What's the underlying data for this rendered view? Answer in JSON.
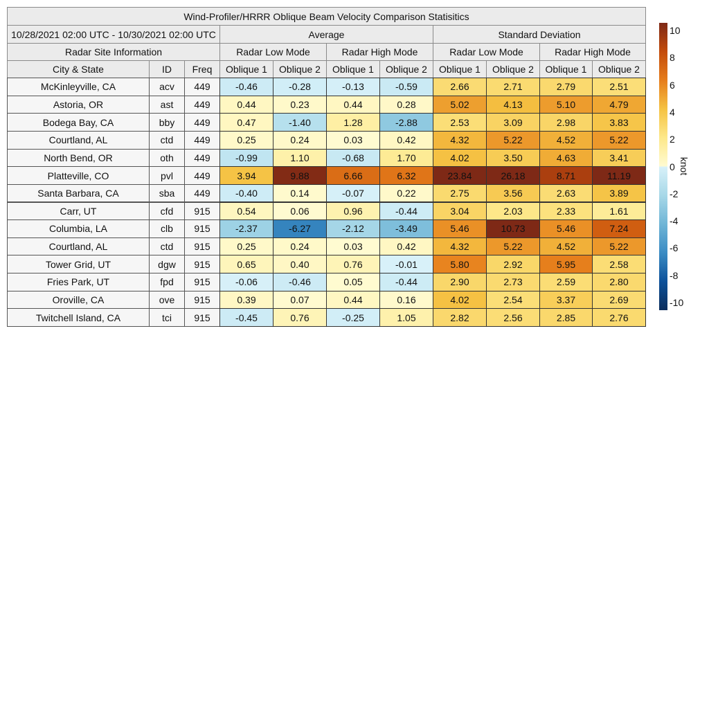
{
  "chart_data": {
    "type": "heatmap",
    "title": "Wind-Profiler/HRRR Oblique Beam Velocity Comparison Statisitics",
    "period": "10/28/2021 02:00 UTC - 10/30/2021 02:00 UTC",
    "site_header": "Radar Site Information",
    "groups": [
      "Average",
      "Standard Deviation"
    ],
    "modes": [
      "Radar Low Mode",
      "Radar High Mode",
      "Radar Low Mode",
      "Radar High Mode"
    ],
    "columns": [
      "City & State",
      "ID",
      "Freq",
      "Oblique 1",
      "Oblique 2",
      "Oblique 1",
      "Oblique 2",
      "Oblique 1",
      "Oblique 2",
      "Oblique 1",
      "Oblique 2"
    ],
    "rows": [
      {
        "city": "McKinleyville, CA",
        "id": "acv",
        "freq": "449",
        "values": [
          "-0.46",
          "-0.28",
          "-0.13",
          "-0.59",
          "2.66",
          "2.71",
          "2.79",
          "2.51"
        ]
      },
      {
        "city": "Astoria, OR",
        "id": "ast",
        "freq": "449",
        "values": [
          "0.44",
          "0.23",
          "0.44",
          "0.28",
          "5.02",
          "4.13",
          "5.10",
          "4.79"
        ]
      },
      {
        "city": "Bodega Bay, CA",
        "id": "bby",
        "freq": "449",
        "values": [
          "0.47",
          "-1.40",
          "1.28",
          "-2.88",
          "2.53",
          "3.09",
          "2.98",
          "3.83"
        ]
      },
      {
        "city": "Courtland, AL",
        "id": "ctd",
        "freq": "449",
        "values": [
          "0.25",
          "0.24",
          "0.03",
          "0.42",
          "4.32",
          "5.22",
          "4.52",
          "5.22"
        ]
      },
      {
        "city": "North Bend, OR",
        "id": "oth",
        "freq": "449",
        "values": [
          "-0.99",
          "1.10",
          "-0.68",
          "1.70",
          "4.02",
          "3.50",
          "4.63",
          "3.41"
        ]
      },
      {
        "city": "Platteville, CO",
        "id": "pvl",
        "freq": "449",
        "values": [
          "3.94",
          "9.88",
          "6.66",
          "6.32",
          "23.84",
          "26.18",
          "8.71",
          "11.19"
        ]
      },
      {
        "city": "Santa Barbara, CA",
        "id": "sba",
        "freq": "449",
        "values": [
          "-0.40",
          "0.14",
          "-0.07",
          "0.22",
          "2.75",
          "3.56",
          "2.63",
          "3.89"
        ]
      },
      {
        "city": "Carr, UT",
        "id": "cfd",
        "freq": "915",
        "values": [
          "0.54",
          "0.06",
          "0.96",
          "-0.44",
          "3.04",
          "2.03",
          "2.33",
          "1.61"
        ]
      },
      {
        "city": "Columbia, LA",
        "id": "clb",
        "freq": "915",
        "values": [
          "-2.37",
          "-6.27",
          "-2.12",
          "-3.49",
          "5.46",
          "10.73",
          "5.46",
          "7.24"
        ]
      },
      {
        "city": "Courtland, AL",
        "id": "ctd",
        "freq": "915",
        "values": [
          "0.25",
          "0.24",
          "0.03",
          "0.42",
          "4.32",
          "5.22",
          "4.52",
          "5.22"
        ]
      },
      {
        "city": "Tower Grid, UT",
        "id": "dgw",
        "freq": "915",
        "values": [
          "0.65",
          "0.40",
          "0.76",
          "-0.01",
          "5.80",
          "2.92",
          "5.95",
          "2.58"
        ]
      },
      {
        "city": "Fries Park, UT",
        "id": "fpd",
        "freq": "915",
        "values": [
          "-0.06",
          "-0.46",
          "0.05",
          "-0.44",
          "2.90",
          "2.73",
          "2.59",
          "2.80"
        ]
      },
      {
        "city": "Oroville, CA",
        "id": "ove",
        "freq": "915",
        "values": [
          "0.39",
          "0.07",
          "0.44",
          "0.16",
          "4.02",
          "2.54",
          "3.37",
          "2.69"
        ]
      },
      {
        "city": "Twitchell Island, CA",
        "id": "tci",
        "freq": "915",
        "values": [
          "-0.45",
          "0.76",
          "-0.25",
          "1.05",
          "2.82",
          "2.56",
          "2.85",
          "2.76"
        ]
      }
    ],
    "colorbar": {
      "label": "knot",
      "range": [
        -10,
        10
      ],
      "ticks": [
        "10",
        "8",
        "6",
        "4",
        "2",
        "0",
        "-2",
        "-4",
        "-6",
        "-8",
        "-10"
      ],
      "colors": [
        "#0b2d5c",
        "#0d519a",
        "#3b8cc4",
        "#6fb5d6",
        "#a8d8e8",
        "#d8f1f9",
        "#fffbd2",
        "#fde88a",
        "#f5c243",
        "#e67d1b",
        "#c34b0b",
        "#7e2916"
      ]
    }
  }
}
